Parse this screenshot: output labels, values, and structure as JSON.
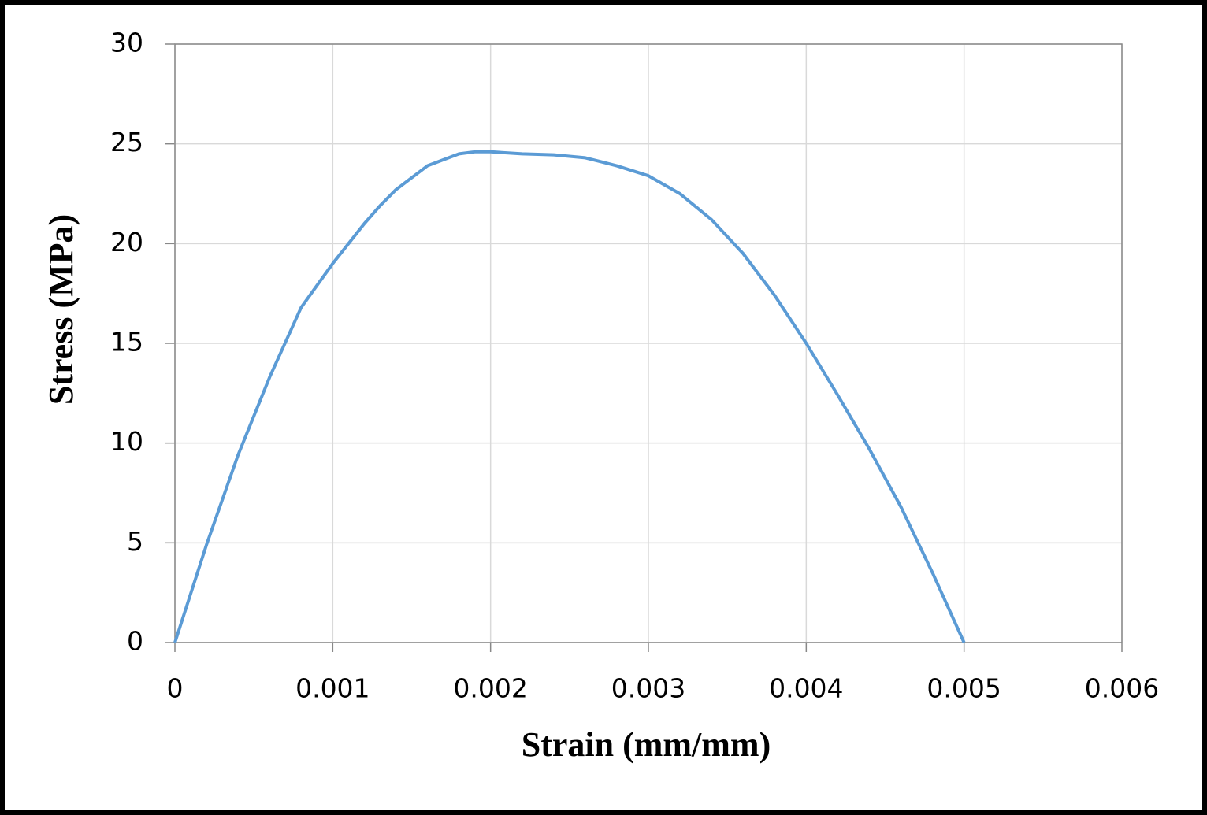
{
  "chart_data": {
    "type": "line",
    "x_label": "Strain (mm/mm)",
    "y_label": "Stress (MPa)",
    "xlim": [
      0,
      0.006
    ],
    "xticks": [
      0,
      0.001,
      0.002,
      0.003,
      0.004,
      0.005,
      0.006
    ],
    "ylim": [
      0,
      30
    ],
    "yticks": [
      0,
      5,
      10,
      15,
      20,
      25,
      30
    ],
    "grid": true,
    "series": [
      {
        "color": "#5b9bd5",
        "x": [
          0,
          0.0002,
          0.0004,
          0.0006,
          0.0008,
          0.001,
          0.0012,
          0.0013,
          0.0014,
          0.0016,
          0.0018,
          0.0019,
          0.002,
          0.0022,
          0.0024,
          0.0026,
          0.0028,
          0.003,
          0.0032,
          0.0034,
          0.0036,
          0.0038,
          0.004,
          0.0042,
          0.0044,
          0.0046,
          0.0048,
          0.005
        ],
        "values": [
          0,
          4.9,
          9.4,
          13.3,
          16.8,
          19.0,
          21.0,
          21.9,
          22.7,
          23.9,
          24.5,
          24.6,
          24.6,
          24.5,
          24.45,
          24.3,
          23.9,
          23.4,
          22.5,
          21.2,
          19.5,
          17.4,
          15.0,
          12.4,
          9.7,
          6.8,
          3.5,
          0
        ]
      }
    ]
  }
}
